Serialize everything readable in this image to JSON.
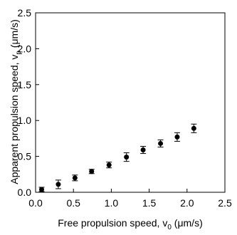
{
  "chart_data": {
    "type": "scatter",
    "title": "",
    "xlabel": {
      "main": "Free propulsion speed, v",
      "sub": "0",
      "unit": " (μm/s)"
    },
    "ylabel": {
      "main": "Apparent propulsion speed, v",
      "sub": "p",
      "unit": " (μm/s)"
    },
    "xlim": [
      0,
      2.5
    ],
    "ylim": [
      0,
      2.5
    ],
    "xticks": [
      0.0,
      0.5,
      1.0,
      1.5,
      2.0,
      2.5
    ],
    "yticks": [
      0.0,
      0.5,
      1.0,
      1.5,
      2.0,
      2.5
    ],
    "xtick_labels": [
      "0.0",
      "0.5",
      "1.0",
      "1.5",
      "2.0",
      "2.5"
    ],
    "ytick_labels": [
      "0.0",
      "0.5",
      "1.0",
      "1.5",
      "2.0",
      "2.5"
    ],
    "grid": false,
    "marker_color": "#000000",
    "series": [
      {
        "x": [
          0.08,
          0.3,
          0.52,
          0.74,
          0.97,
          1.2,
          1.42,
          1.65,
          1.87,
          2.09
        ],
        "y": [
          0.04,
          0.11,
          0.2,
          0.29,
          0.38,
          0.49,
          0.59,
          0.68,
          0.77,
          0.89
        ],
        "err": [
          0.03,
          0.06,
          0.04,
          0.03,
          0.04,
          0.06,
          0.05,
          0.05,
          0.06,
          0.06
        ]
      }
    ]
  }
}
